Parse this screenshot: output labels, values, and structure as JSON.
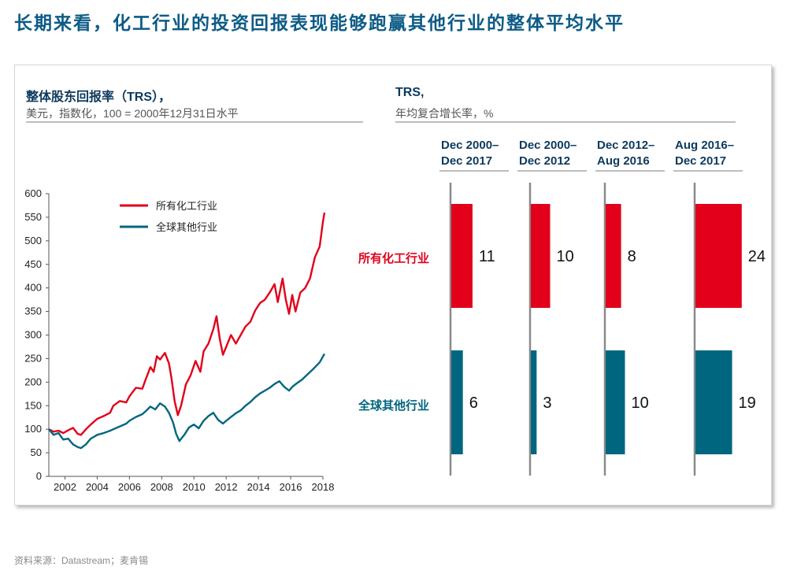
{
  "page": {
    "title": "长期来看，化工行业的投资回报表现能够跑赢其他行业的整体平均水平",
    "source": "资料来源：Datastream；麦肯锡"
  },
  "colors": {
    "chemicals": "#e2001a",
    "others": "#00667f",
    "title": "#0d5b86"
  },
  "left_panel": {
    "title": "整体股东回报率（TRS），",
    "subtitle": "美元，指数化，100 = 2000年12月31日水平"
  },
  "right_panel": {
    "title": "TRS,",
    "subtitle": "年均复合增长率，%"
  },
  "chart_data": [
    {
      "type": "line",
      "title": "整体股东回报率（TRS），",
      "subtitle": "美元，指数化，100 = 2000年12月31日水平",
      "ylim": [
        0,
        600
      ],
      "yticks": [
        0,
        50,
        100,
        150,
        200,
        250,
        300,
        350,
        400,
        450,
        500,
        550,
        600
      ],
      "xlim": [
        2001,
        2018
      ],
      "xticks": [
        2002,
        2004,
        2006,
        2008,
        2010,
        2012,
        2014,
        2016,
        2018
      ],
      "legend": "top-left",
      "series": [
        {
          "name": "所有化工行业",
          "color": "#e2001a",
          "points": [
            [
              2001,
              100
            ],
            [
              2001.3,
              95
            ],
            [
              2001.6,
              97
            ],
            [
              2001.9,
              92
            ],
            [
              2002.2,
              98
            ],
            [
              2002.5,
              103
            ],
            [
              2002.8,
              90
            ],
            [
              2003.0,
              88
            ],
            [
              2003.3,
              100
            ],
            [
              2003.6,
              110
            ],
            [
              2004.0,
              122
            ],
            [
              2004.4,
              128
            ],
            [
              2004.8,
              135
            ],
            [
              2005.0,
              150
            ],
            [
              2005.4,
              160
            ],
            [
              2005.8,
              157
            ],
            [
              2006.0,
              170
            ],
            [
              2006.4,
              188
            ],
            [
              2006.8,
              186
            ],
            [
              2007.0,
              205
            ],
            [
              2007.3,
              232
            ],
            [
              2007.5,
              222
            ],
            [
              2007.7,
              255
            ],
            [
              2007.9,
              248
            ],
            [
              2008.2,
              262
            ],
            [
              2008.45,
              240
            ],
            [
              2008.6,
              210
            ],
            [
              2008.8,
              160
            ],
            [
              2009.0,
              130
            ],
            [
              2009.2,
              150
            ],
            [
              2009.5,
              195
            ],
            [
              2009.8,
              215
            ],
            [
              2010.1,
              245
            ],
            [
              2010.4,
              222
            ],
            [
              2010.6,
              265
            ],
            [
              2010.9,
              282
            ],
            [
              2011.2,
              312
            ],
            [
              2011.4,
              340
            ],
            [
              2011.6,
              292
            ],
            [
              2011.8,
              258
            ],
            [
              2012.0,
              275
            ],
            [
              2012.3,
              300
            ],
            [
              2012.6,
              282
            ],
            [
              2012.9,
              300
            ],
            [
              2013.2,
              318
            ],
            [
              2013.5,
              328
            ],
            [
              2013.8,
              352
            ],
            [
              2014.1,
              368
            ],
            [
              2014.4,
              375
            ],
            [
              2014.7,
              390
            ],
            [
              2015.0,
              408
            ],
            [
              2015.2,
              370
            ],
            [
              2015.5,
              420
            ],
            [
              2015.7,
              375
            ],
            [
              2015.9,
              345
            ],
            [
              2016.1,
              385
            ],
            [
              2016.3,
              350
            ],
            [
              2016.6,
              390
            ],
            [
              2016.9,
              400
            ],
            [
              2017.2,
              420
            ],
            [
              2017.5,
              465
            ],
            [
              2017.8,
              488
            ],
            [
              2018.0,
              540
            ],
            [
              2018.1,
              560
            ]
          ]
        },
        {
          "name": "全球其他行业",
          "color": "#00667f",
          "points": [
            [
              2001,
              100
            ],
            [
              2001.3,
              88
            ],
            [
              2001.6,
              92
            ],
            [
              2001.9,
              78
            ],
            [
              2002.2,
              80
            ],
            [
              2002.5,
              68
            ],
            [
              2002.8,
              62
            ],
            [
              2003.0,
              60
            ],
            [
              2003.3,
              68
            ],
            [
              2003.6,
              80
            ],
            [
              2004.0,
              88
            ],
            [
              2004.4,
              92
            ],
            [
              2004.8,
              97
            ],
            [
              2005.0,
              100
            ],
            [
              2005.4,
              106
            ],
            [
              2005.8,
              112
            ],
            [
              2006.0,
              118
            ],
            [
              2006.4,
              126
            ],
            [
              2006.8,
              132
            ],
            [
              2007.0,
              138
            ],
            [
              2007.3,
              148
            ],
            [
              2007.6,
              142
            ],
            [
              2007.9,
              155
            ],
            [
              2008.2,
              148
            ],
            [
              2008.45,
              135
            ],
            [
              2008.7,
              115
            ],
            [
              2008.9,
              90
            ],
            [
              2009.1,
              75
            ],
            [
              2009.4,
              88
            ],
            [
              2009.7,
              104
            ],
            [
              2010.0,
              110
            ],
            [
              2010.3,
              102
            ],
            [
              2010.6,
              118
            ],
            [
              2010.9,
              128
            ],
            [
              2011.2,
              135
            ],
            [
              2011.5,
              120
            ],
            [
              2011.8,
              112
            ],
            [
              2012.0,
              118
            ],
            [
              2012.3,
              126
            ],
            [
              2012.6,
              134
            ],
            [
              2012.9,
              140
            ],
            [
              2013.2,
              150
            ],
            [
              2013.5,
              158
            ],
            [
              2013.8,
              168
            ],
            [
              2014.1,
              176
            ],
            [
              2014.4,
              182
            ],
            [
              2014.7,
              188
            ],
            [
              2015.0,
              196
            ],
            [
              2015.3,
              202
            ],
            [
              2015.6,
              190
            ],
            [
              2015.9,
              182
            ],
            [
              2016.1,
              190
            ],
            [
              2016.4,
              198
            ],
            [
              2016.7,
              205
            ],
            [
              2017.0,
              215
            ],
            [
              2017.4,
              228
            ],
            [
              2017.8,
              242
            ],
            [
              2018.1,
              260
            ]
          ]
        }
      ]
    },
    {
      "type": "bar",
      "orientation": "horizontal",
      "title": "TRS,",
      "subtitle": "年均复合增长率，%",
      "categories": [
        "所有化工行业",
        "全球其他行业"
      ],
      "series": [
        {
          "name": "Dec 2000– Dec 2017",
          "values": [
            11,
            6
          ]
        },
        {
          "name": "Dec 2000– Dec 2012",
          "values": [
            10,
            3
          ]
        },
        {
          "name": "Dec 2012– Aug 2016",
          "values": [
            8,
            10
          ]
        },
        {
          "name": "Aug 2016– Dec 2017",
          "values": [
            24,
            19
          ]
        }
      ],
      "column_headers": [
        [
          "Dec 2000–",
          "Dec 2017"
        ],
        [
          "Dec 2000–",
          "Dec 2012"
        ],
        [
          "Dec 2012–",
          "Aug 2016"
        ],
        [
          "Aug 2016–",
          "Dec 2017"
        ]
      ]
    }
  ]
}
